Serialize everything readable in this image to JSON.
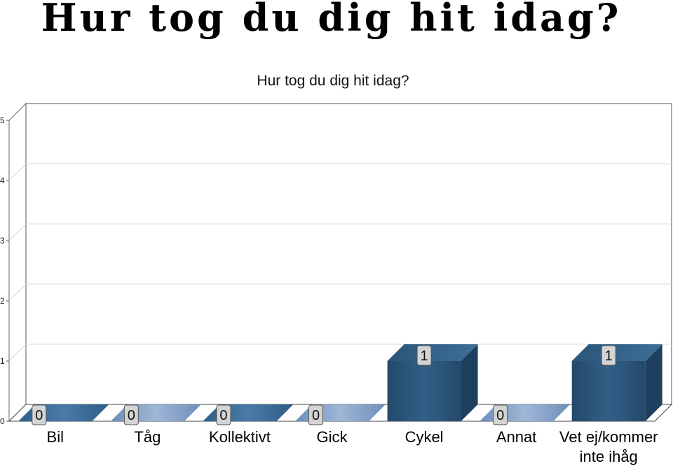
{
  "page_title": "Hur tog du dig hit idag?",
  "chart_data": {
    "type": "bar",
    "title": "Hur tog du dig hit idag?",
    "categories": [
      "Bil",
      "Tåg",
      "Kollektivt",
      "Gick",
      "Cykel",
      "Annat",
      "Vet ej/kommer inte ihåg"
    ],
    "values": [
      0,
      0,
      0,
      0,
      1,
      0,
      1
    ],
    "ylim": [
      0,
      5
    ],
    "yticks": [
      "0",
      "1",
      "2",
      "3",
      "4",
      "5"
    ],
    "grid": true,
    "legend": "none",
    "bar_color": "#2e5a80"
  }
}
